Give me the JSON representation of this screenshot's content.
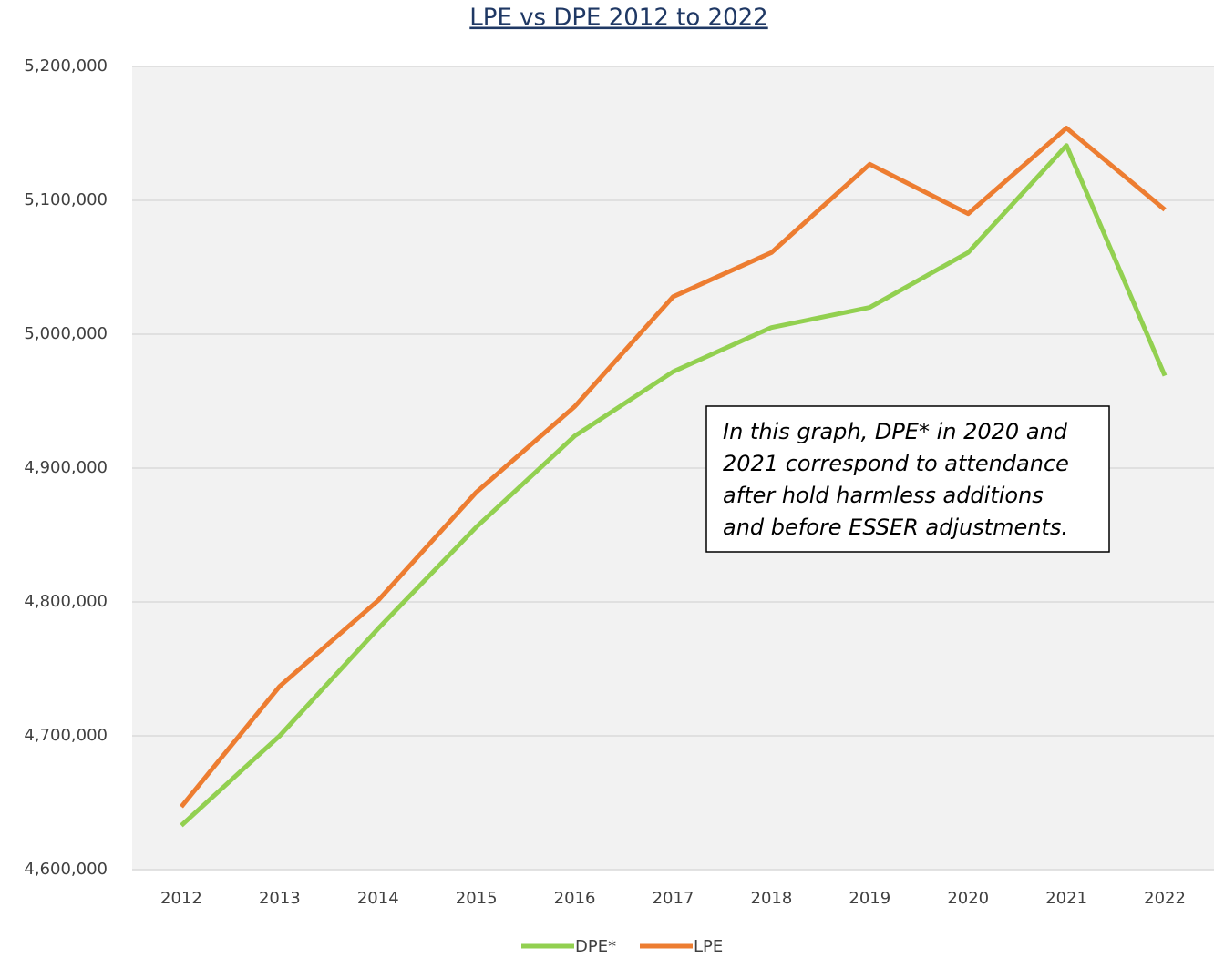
{
  "chart_data": {
    "type": "line",
    "title": "LPE vs DPE 2012 to 2022",
    "categories": [
      "2012",
      "2013",
      "2014",
      "2015",
      "2016",
      "2017",
      "2018",
      "2019",
      "2020",
      "2021",
      "2022"
    ],
    "series": [
      {
        "name": "DPE*",
        "color": "#92d050",
        "values": [
          4633000,
          4700000,
          4780000,
          4856000,
          4924000,
          4972000,
          5005000,
          5020000,
          5061000,
          5141000,
          4969000
        ]
      },
      {
        "name": "LPE",
        "color": "#ed7d31",
        "values": [
          4647000,
          4737000,
          4801000,
          4882000,
          4946000,
          5028000,
          5061000,
          5127000,
          5090000,
          5154000,
          5093000
        ]
      }
    ],
    "ylim": [
      4600000,
      5200000
    ],
    "yticks": [
      {
        "value": 4600000,
        "label": "4,600,000"
      },
      {
        "value": 4700000,
        "label": "4,700,000"
      },
      {
        "value": 4800000,
        "label": "4,800,000"
      },
      {
        "value": 4900000,
        "label": "4,900,000"
      },
      {
        "value": 5000000,
        "label": "5,000,000"
      },
      {
        "value": 5100000,
        "label": "5,100,000"
      },
      {
        "value": 5200000,
        "label": "5,200,000"
      }
    ],
    "grid": true,
    "legend": "bottom",
    "annotation": [
      "In this graph, DPE* in 2020 and",
      "2021 correspond to attendance",
      "after hold harmless additions",
      "and before ESSER adjustments."
    ]
  }
}
